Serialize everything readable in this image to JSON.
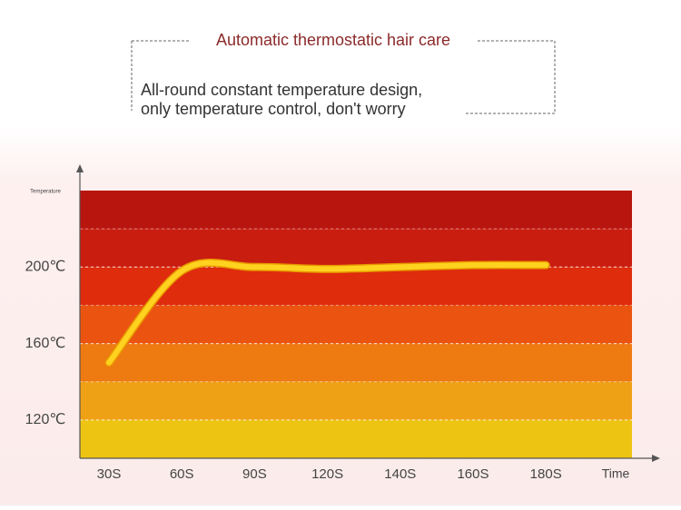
{
  "chart_data": {
    "type": "line",
    "title": "Automatic thermostatic hair care",
    "subtitle": [
      "All-round constant temperature design,",
      "only temperature control, don't worry"
    ],
    "y_label": "Temperature",
    "x_label": "Time",
    "categories": [
      "30S",
      "60S",
      "90S",
      "120S",
      "140S",
      "160S",
      "180S"
    ],
    "values": [
      150,
      198,
      200,
      199,
      200,
      201,
      201
    ],
    "color": "#ffd21f",
    "ylim": [
      100,
      240
    ],
    "yticks": [
      {
        "value": 120,
        "label": "120℃"
      },
      {
        "value": 160,
        "label": "160℃"
      },
      {
        "value": 200,
        "label": "200℃"
      }
    ],
    "band_colors": [
      "#b8150f",
      "#c91d10",
      "#de2c0c",
      "#ea5410",
      "#ee7a12",
      "#eea115",
      "#eec413"
    ],
    "grid": true
  }
}
